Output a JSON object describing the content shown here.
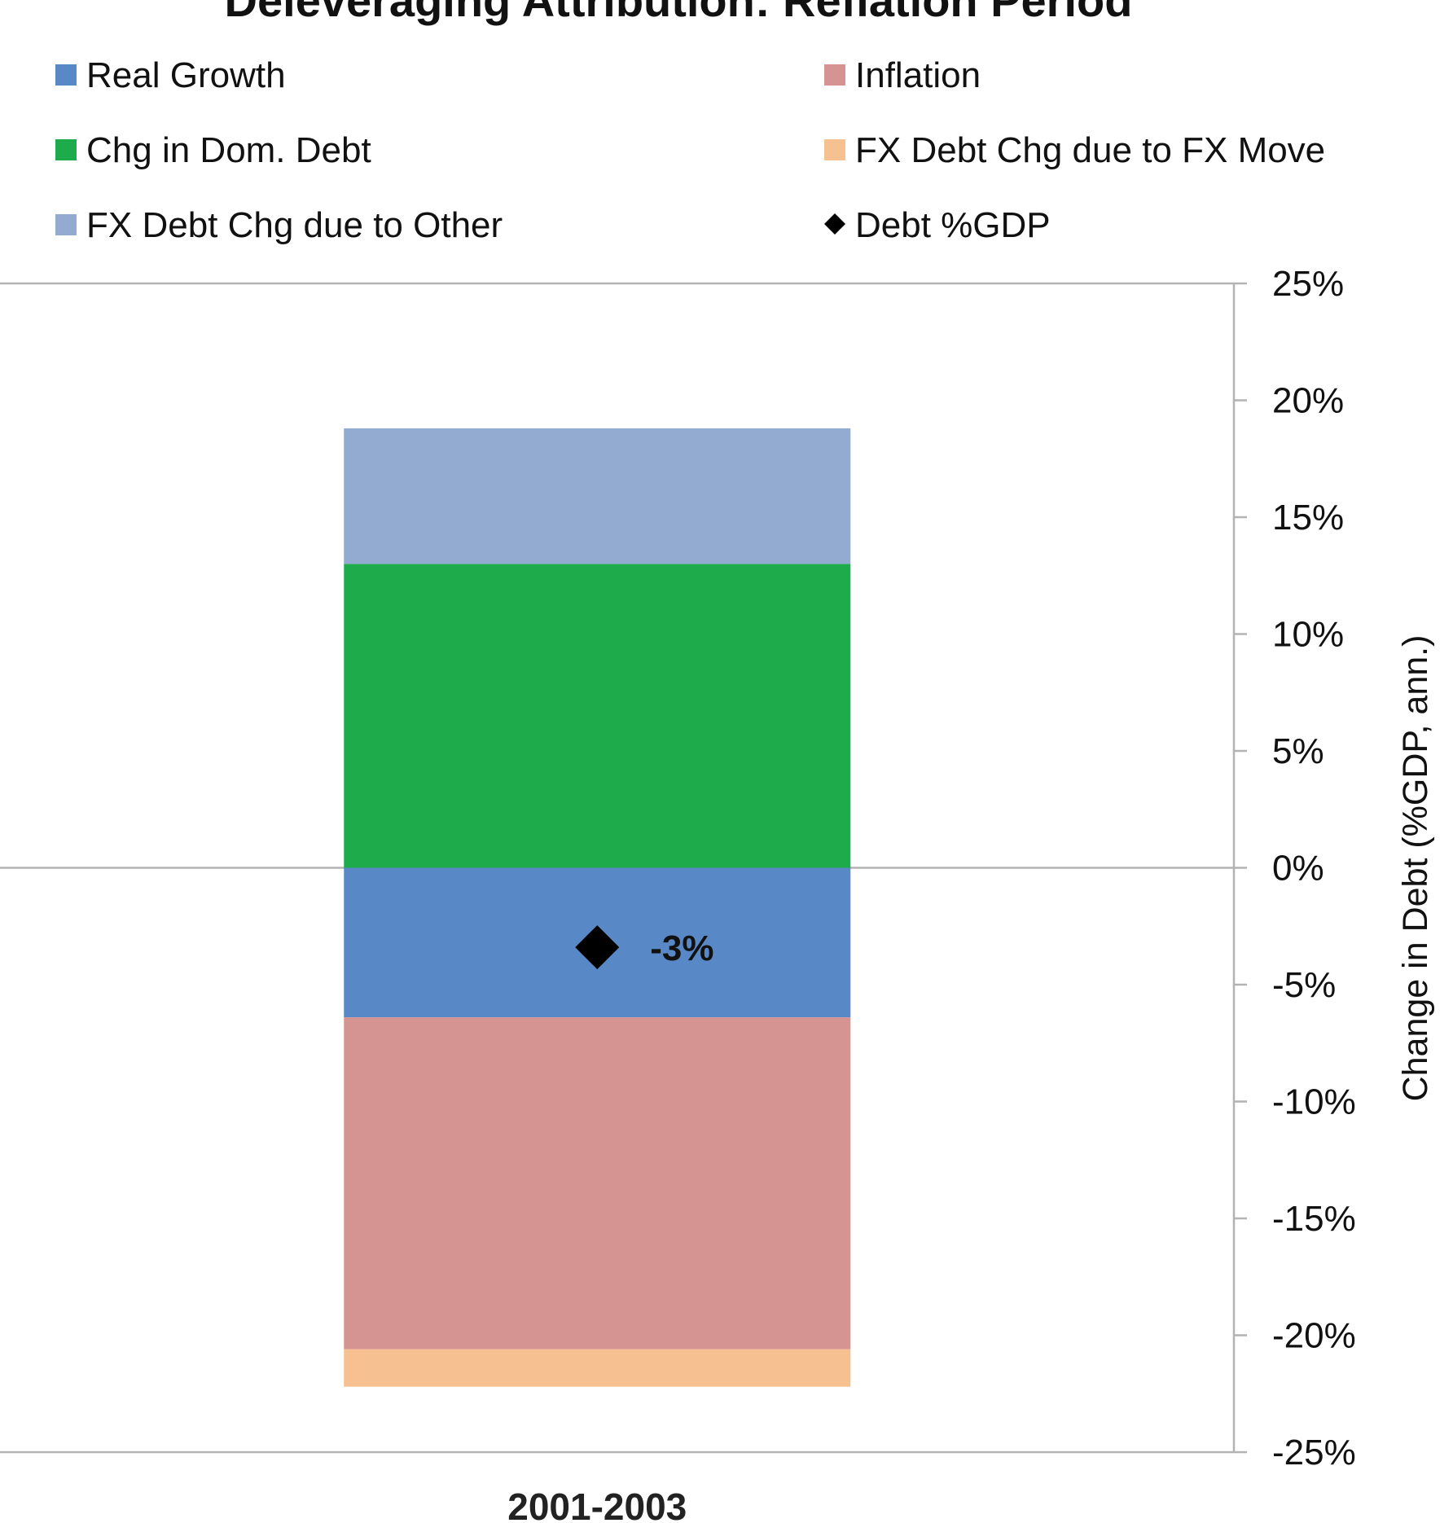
{
  "chart_data": {
    "type": "bar",
    "stacked": true,
    "title": "Deleveraging Attribution: Reflation Period",
    "categories": [
      "2001-2003"
    ],
    "series": [
      {
        "name": "Real Growth",
        "values": [
          -6.4
        ],
        "color": "#5889c6"
      },
      {
        "name": "Inflation",
        "values": [
          -14.2
        ],
        "color": "#d59392"
      },
      {
        "name": "Chg in Dom. Debt",
        "values": [
          13.0
        ],
        "color": "#1eab4b"
      },
      {
        "name": "FX Debt Chg due to FX Move",
        "values": [
          -1.6
        ],
        "color": "#f7c091"
      },
      {
        "name": "FX Debt Chg due to Other",
        "values": [
          5.8
        ],
        "color": "#93abd1"
      }
    ],
    "marker_series": {
      "name": "Debt %GDP",
      "values": [
        -3.4
      ],
      "label": "-3%",
      "marker": "diamond",
      "color": "#000000"
    },
    "ylabel": "Change in Debt (%GDP, ann.)",
    "ylim": [
      -25,
      25
    ],
    "yticks": [
      25,
      20,
      15,
      10,
      5,
      0,
      -5,
      -10,
      -15,
      -20,
      -25
    ],
    "ytick_labels": [
      "25%",
      "20%",
      "15%",
      "10%",
      "5%",
      "0%",
      "-5%",
      "-10%",
      "-15%",
      "-20%",
      "-25%"
    ],
    "y_axis_side": "right",
    "legend_position": "top",
    "grid": false
  }
}
